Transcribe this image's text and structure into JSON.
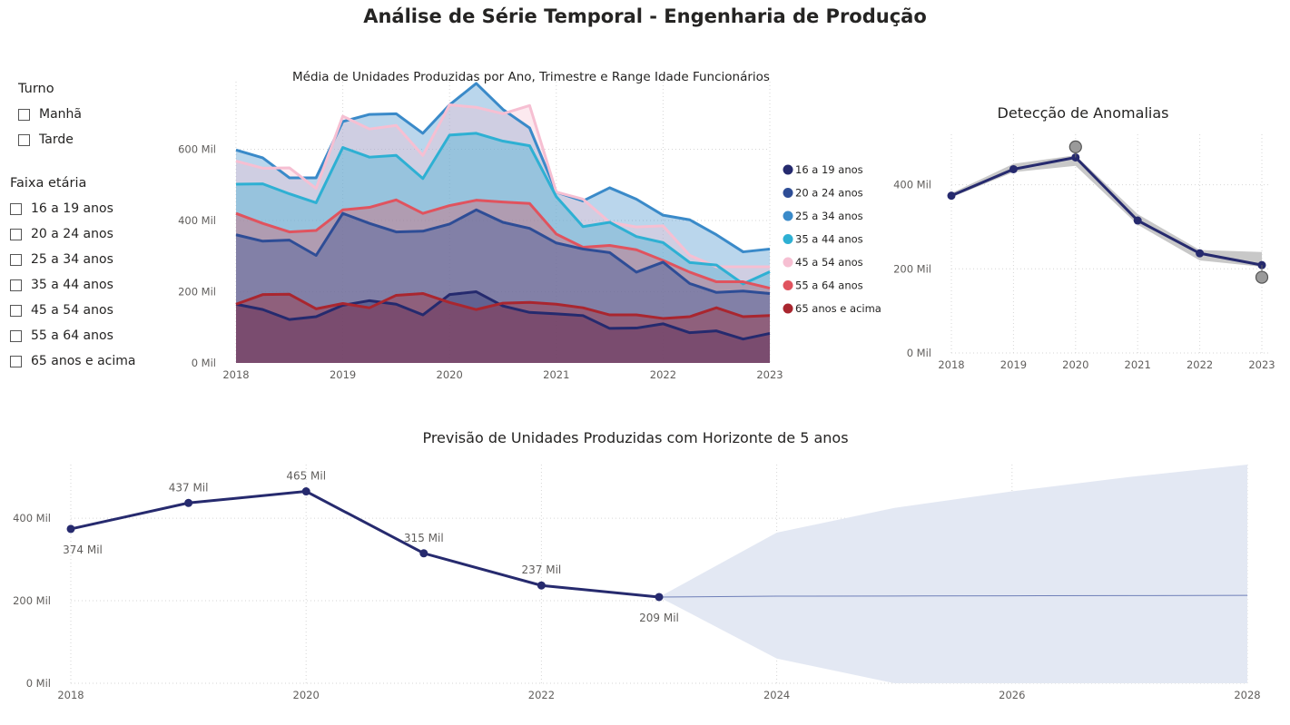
{
  "page_title": "Análise de Série Temporal - Engenharia de Produção",
  "slicers": {
    "turno": {
      "header": "Turno",
      "options": [
        "Manhã",
        "Tarde"
      ]
    },
    "faixa": {
      "header": "Faixa etária",
      "options": [
        "16 a 19 anos",
        "20 a 24 anos",
        "25 a 34 anos",
        "35 a 44 anos",
        "45 a 54 anos",
        "55 a 64 anos",
        "65 anos e acima"
      ]
    }
  },
  "colors": {
    "s16": "#252a6e",
    "s20": "#2e4d96",
    "s25": "#3a8ac9",
    "s35": "#2eb0d3",
    "s45": "#f6bfd2",
    "s55": "#e0535e",
    "s65": "#a9262f",
    "anomaly_line": "#262a6e",
    "anomaly_band": "#c8c8c8",
    "anomaly_marker": "#9a9a9a",
    "forecast_line": "#262a6e",
    "forecast_band": "#e3e8f3",
    "forecast_mean": "#6f7fb8"
  },
  "chart_data": [
    {
      "type": "area",
      "title": "Média de Unidades Produzidas por Ano, Trimestre e Range Idade Funcionários",
      "x": [
        2018,
        2018.25,
        2018.5,
        2018.75,
        2019,
        2019.25,
        2019.5,
        2019.75,
        2020,
        2020.25,
        2020.5,
        2020.75,
        2021,
        2021.25,
        2021.5,
        2021.75,
        2022,
        2022.25,
        2022.5,
        2022.75,
        2023
      ],
      "x_ticks": [
        "2018",
        "2019",
        "2020",
        "2021",
        "2022",
        "2023"
      ],
      "y_ticks": [
        "0 Mil",
        "200 Mil",
        "400 Mil",
        "600 Mil"
      ],
      "ylim": [
        0,
        790000
      ],
      "legend_position": "right",
      "series": [
        {
          "name": "16 a 19 anos",
          "color_key": "s16",
          "values": [
            165000,
            150000,
            122000,
            130000,
            162000,
            175000,
            165000,
            135000,
            192000,
            200000,
            160000,
            142000,
            138000,
            133000,
            97000,
            98000,
            110000,
            85000,
            90000,
            67000,
            83000
          ]
        },
        {
          "name": "20 a 24 anos",
          "color_key": "s20",
          "values": [
            360000,
            342000,
            345000,
            302000,
            420000,
            392000,
            368000,
            370000,
            390000,
            430000,
            395000,
            378000,
            337000,
            320000,
            310000,
            255000,
            283000,
            223000,
            198000,
            202000,
            195000
          ]
        },
        {
          "name": "25 a 34 anos",
          "color_key": "s25",
          "values": [
            598000,
            576000,
            520000,
            520000,
            678000,
            698000,
            700000,
            645000,
            725000,
            785000,
            712000,
            660000,
            480000,
            455000,
            492000,
            460000,
            415000,
            402000,
            360000,
            312000,
            320000
          ]
        },
        {
          "name": "35 a 44 anos",
          "color_key": "s35",
          "values": [
            502000,
            503000,
            475000,
            450000,
            605000,
            578000,
            583000,
            518000,
            640000,
            645000,
            623000,
            610000,
            467000,
            383000,
            395000,
            355000,
            338000,
            282000,
            275000,
            222000,
            256000
          ]
        },
        {
          "name": "45 a 54 anos",
          "color_key": "s45",
          "values": [
            567000,
            547000,
            548000,
            490000,
            693000,
            657000,
            667000,
            583000,
            725000,
            718000,
            700000,
            723000,
            480000,
            460000,
            395000,
            382000,
            385000,
            302000,
            270000,
            270000,
            270000
          ]
        },
        {
          "name": "55 a 64 anos",
          "color_key": "s55",
          "values": [
            420000,
            392000,
            368000,
            372000,
            430000,
            437000,
            458000,
            420000,
            442000,
            457000,
            452000,
            448000,
            362000,
            325000,
            330000,
            318000,
            288000,
            255000,
            228000,
            228000,
            210000
          ]
        },
        {
          "name": "65 anos e acima",
          "color_key": "s65",
          "values": [
            165000,
            192000,
            193000,
            152000,
            167000,
            155000,
            190000,
            195000,
            170000,
            150000,
            168000,
            170000,
            165000,
            155000,
            135000,
            135000,
            125000,
            130000,
            155000,
            130000,
            133000
          ]
        }
      ]
    },
    {
      "type": "line",
      "title": "Detecção de Anomalias",
      "x": [
        2018,
        2019,
        2020,
        2021,
        2022,
        2023
      ],
      "x_ticks": [
        "2018",
        "2019",
        "2020",
        "2021",
        "2022",
        "2023"
      ],
      "y_ticks": [
        "0 Mil",
        "200 Mil",
        "400 Mil"
      ],
      "ylim": [
        0,
        520000
      ],
      "values": [
        374000,
        437000,
        465000,
        315000,
        237000,
        209000
      ],
      "band_low": [
        370000,
        430000,
        445000,
        305000,
        220000,
        205000
      ],
      "band_high": [
        380000,
        450000,
        470000,
        330000,
        245000,
        240000
      ],
      "anomalies": [
        {
          "x": 2020,
          "y": 490000
        },
        {
          "x": 2023,
          "y": 180000
        }
      ]
    },
    {
      "type": "line",
      "title": "Previsão de Unidades Produzidas com Horizonte de 5 anos",
      "x": [
        2018,
        2019,
        2020,
        2021,
        2022,
        2023
      ],
      "values": [
        374000,
        437000,
        465000,
        315000,
        237000,
        209000
      ],
      "data_labels": [
        "374 Mil",
        "437 Mil",
        "465 Mil",
        "315 Mil",
        "237 Mil",
        "209 Mil"
      ],
      "x_ticks": [
        "2018",
        "2020",
        "2022",
        "2024",
        "2026",
        "2028"
      ],
      "y_ticks": [
        "0 Mil",
        "200 Mil",
        "400 Mil"
      ],
      "ylim": [
        0,
        530000
      ],
      "forecast": {
        "x": [
          2023,
          2024,
          2025,
          2026,
          2027,
          2028
        ],
        "mean": [
          209000,
          211000,
          211500,
          212000,
          212500,
          213000
        ],
        "upper": [
          209000,
          365000,
          425000,
          465000,
          500000,
          530000
        ],
        "lower": [
          209000,
          60000,
          0,
          0,
          0,
          0
        ]
      }
    }
  ]
}
